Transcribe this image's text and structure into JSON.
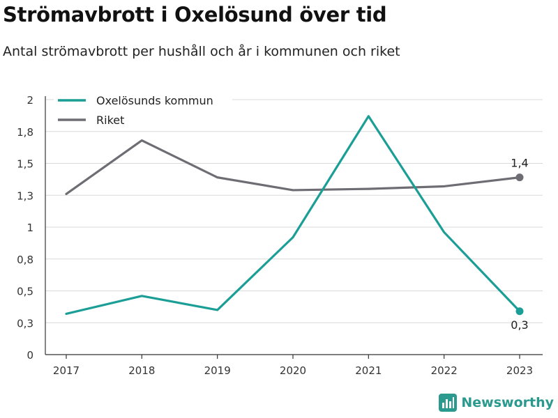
{
  "header": {
    "title": "Strömavbrott i Oxelösund över tid",
    "subtitle": "Antal strömavbrott per hushåll och år i kommunen och riket"
  },
  "brand": {
    "name": "Newsworthy",
    "icon": "newsworthy-chart-icon"
  },
  "colors": {
    "kommun": "#1a9e96",
    "riket": "#6d6d73",
    "grid": "#d9d9d9",
    "axis": "#333333"
  },
  "chart_data": {
    "type": "line",
    "x": [
      "2017",
      "2018",
      "2019",
      "2020",
      "2021",
      "2022",
      "2023"
    ],
    "series": [
      {
        "name": "Oxelösunds kommun",
        "color": "#1a9e96",
        "values": [
          0.32,
          0.46,
          0.35,
          0.92,
          1.87,
          0.96,
          0.34
        ],
        "end_label": "0,3"
      },
      {
        "name": "Riket",
        "color": "#6d6d73",
        "values": [
          1.26,
          1.68,
          1.39,
          1.29,
          1.3,
          1.32,
          1.39
        ],
        "end_label": "1,4"
      }
    ],
    "ylim": [
      0,
      2
    ],
    "yticks": [
      0,
      0.25,
      0.5,
      0.75,
      1,
      1.25,
      1.5,
      1.75,
      2
    ],
    "ytick_labels": [
      "0",
      "0,3",
      "0,5",
      "0,8",
      "1",
      "1,3",
      "1,5",
      "1,8",
      "2"
    ],
    "grid": true,
    "legend": "top-left",
    "xlabel": "",
    "ylabel": ""
  }
}
